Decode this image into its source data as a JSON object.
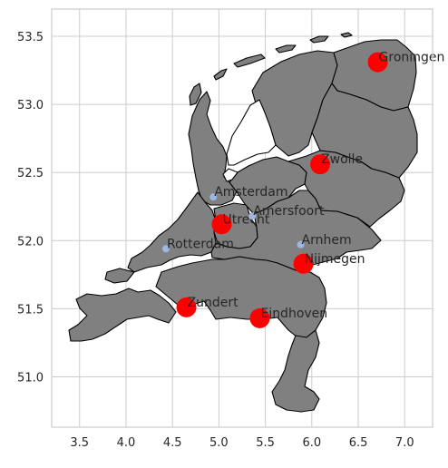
{
  "chart_data": {
    "type": "scatter",
    "title": "",
    "xlabel": "",
    "ylabel": "",
    "xlim": [
      3.2,
      7.3
    ],
    "ylim": [
      50.63,
      53.7
    ],
    "grid": true,
    "x_ticks": [
      "3.5",
      "4.0",
      "4.5",
      "5.0",
      "5.5",
      "6.0",
      "6.5",
      "7.0"
    ],
    "y_ticks": [
      "51.0",
      "51.5",
      "52.0",
      "52.5",
      "53.0",
      "53.5"
    ],
    "base_map": {
      "region": "Netherlands provinces",
      "fill": "#808080",
      "edge": "#000000"
    },
    "series": [
      {
        "marker_color": "#ff0000",
        "marker": "large-circle",
        "points": [
          {
            "label": "Groningen",
            "lon": 6.71,
            "lat": 53.31
          },
          {
            "label": "Zwolle",
            "lon": 6.09,
            "lat": 52.56
          },
          {
            "label": "Utrecht",
            "lon": 5.03,
            "lat": 52.12
          },
          {
            "label": "Nijmegen",
            "lon": 5.91,
            "lat": 51.83
          },
          {
            "label": "Zundert",
            "lon": 4.65,
            "lat": 51.51
          },
          {
            "label": "Eindhoven",
            "lon": 5.44,
            "lat": 51.43
          }
        ]
      },
      {
        "marker_color": "#9cb7e0",
        "marker": "small-circle",
        "points": [
          {
            "label": "Amsterdam",
            "lon": 4.94,
            "lat": 52.32
          },
          {
            "label": "Amersfoort",
            "lon": 5.36,
            "lat": 52.18
          },
          {
            "label": "Rotterdam",
            "lon": 4.43,
            "lat": 51.94
          },
          {
            "label": "Arnhem",
            "lon": 5.88,
            "lat": 51.97
          }
        ]
      }
    ]
  }
}
